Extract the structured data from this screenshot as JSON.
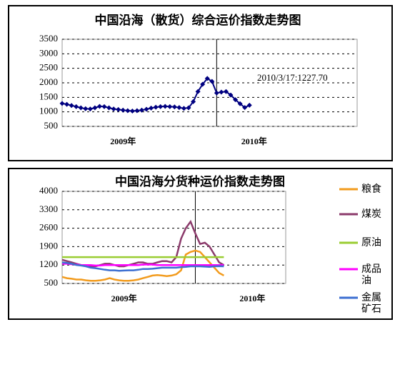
{
  "chart_data": [
    {
      "type": "line",
      "title": "中国沿海（散货）综合运价指数走势图",
      "categories": [
        null,
        null,
        null,
        null,
        null,
        null,
        null,
        null,
        null,
        null,
        null,
        null,
        null,
        "2009年",
        null,
        null,
        null,
        null,
        null,
        null,
        null,
        null,
        null,
        null,
        null,
        null,
        null,
        null,
        null,
        null,
        null,
        null,
        null,
        null,
        null,
        null,
        null,
        null,
        null,
        null,
        null,
        "2010年",
        null,
        null,
        null,
        null,
        null,
        null,
        null,
        null,
        null,
        null,
        null,
        null,
        null,
        null,
        null,
        null,
        null,
        null,
        null,
        null,
        null,
        null
      ],
      "values": [
        1290,
        1260,
        1220,
        1180,
        1140,
        1110,
        1100,
        1140,
        1190,
        1180,
        1140,
        1100,
        1080,
        1060,
        1040,
        1030,
        1040,
        1060,
        1090,
        1130,
        1160,
        1180,
        1190,
        1180,
        1170,
        1150,
        1120,
        1140,
        1350,
        1700,
        1950,
        2150,
        2050,
        1650,
        1680,
        1700,
        1580,
        1420,
        1280,
        1150,
        1230,
        null,
        null,
        null,
        null,
        null,
        null,
        null,
        null,
        null,
        null,
        null,
        null,
        null,
        null,
        null,
        null,
        null,
        null,
        null,
        null,
        null,
        null,
        null
      ],
      "color": "#000080",
      "marker": "diamond",
      "ylim": [
        500,
        3500
      ],
      "yticks": [
        500,
        1000,
        1500,
        2000,
        2500,
        3000,
        3500
      ],
      "grid": true,
      "vline": 33,
      "annotation": "2010/3/17:1227.70"
    },
    {
      "type": "line",
      "title": "中国沿海分货种运价指数走势图",
      "categories": [
        null,
        null,
        null,
        null,
        null,
        null,
        null,
        null,
        null,
        null,
        null,
        null,
        null,
        "2009年",
        null,
        null,
        null,
        null,
        null,
        null,
        null,
        null,
        null,
        null,
        null,
        null,
        null,
        null,
        null,
        null,
        null,
        null,
        null,
        null,
        null,
        null,
        null,
        null,
        null,
        null,
        "2010年",
        null,
        null,
        null,
        null,
        null,
        null,
        null
      ],
      "series": [
        {
          "name": "粮食",
          "color": "#f29b1d",
          "values": [
            750,
            700,
            680,
            650,
            650,
            620,
            600,
            600,
            620,
            650,
            700,
            650,
            620,
            600,
            600,
            620,
            650,
            700,
            750,
            800,
            820,
            800,
            780,
            800,
            850,
            1000,
            1600,
            1700,
            1750,
            1700,
            1500,
            1300,
            1100,
            900,
            800,
            null,
            null,
            null,
            null,
            null,
            null,
            null,
            null,
            null,
            null,
            null,
            null,
            null
          ]
        },
        {
          "name": "煤炭",
          "color": "#8b3a6b",
          "values": [
            1400,
            1350,
            1300,
            1250,
            1200,
            1200,
            1150,
            1150,
            1200,
            1250,
            1250,
            1200,
            1150,
            1150,
            1200,
            1250,
            1300,
            1300,
            1250,
            1250,
            1300,
            1350,
            1350,
            1300,
            1500,
            2200,
            2600,
            2850,
            2400,
            2000,
            2050,
            1900,
            1600,
            1300,
            1200,
            null,
            null,
            null,
            null,
            null,
            null,
            null,
            null,
            null,
            null,
            null,
            null,
            null
          ]
        },
        {
          "name": "原油",
          "color": "#9acd32",
          "values": [
            1500,
            1500,
            1500,
            1500,
            1500,
            1500,
            1500,
            1500,
            1500,
            1500,
            1500,
            1500,
            1500,
            1500,
            1500,
            1500,
            1500,
            1500,
            1500,
            1500,
            1500,
            1500,
            1500,
            1500,
            1500,
            1500,
            1500,
            1500,
            1500,
            1500,
            1500,
            1500,
            1500,
            1500,
            1500,
            null,
            null,
            null,
            null,
            null,
            null,
            null,
            null,
            null,
            null,
            null,
            null,
            null
          ]
        },
        {
          "name": "成品油",
          "color": "#ff00ff",
          "values": [
            1250,
            1250,
            1230,
            1220,
            1200,
            1200,
            1200,
            1180,
            1180,
            1200,
            1200,
            1200,
            1200,
            1200,
            1200,
            1200,
            1200,
            1220,
            1220,
            1220,
            1200,
            1200,
            1200,
            1200,
            1200,
            1200,
            1200,
            1200,
            1200,
            1200,
            1200,
            1200,
            1200,
            1200,
            1200,
            null,
            null,
            null,
            null,
            null,
            null,
            null,
            null,
            null,
            null,
            null,
            null,
            null
          ]
        },
        {
          "name": "金属矿石",
          "color": "#3c6fd1",
          "values": [
            1300,
            1280,
            1250,
            1200,
            1180,
            1150,
            1100,
            1080,
            1050,
            1020,
            1000,
            1000,
            980,
            990,
            1000,
            1000,
            1020,
            1050,
            1050,
            1060,
            1080,
            1100,
            1100,
            1100,
            1100,
            1120,
            1130,
            1150,
            1150,
            1150,
            1140,
            1130,
            1150,
            1160,
            1150,
            null,
            null,
            null,
            null,
            null,
            null,
            null,
            null,
            null,
            null,
            null,
            null,
            null
          ]
        }
      ],
      "ylim": [
        500,
        4000
      ],
      "yticks": [
        500,
        1200,
        1900,
        2600,
        3300,
        4000
      ],
      "grid": true,
      "vline": 28,
      "legend": "right"
    }
  ]
}
